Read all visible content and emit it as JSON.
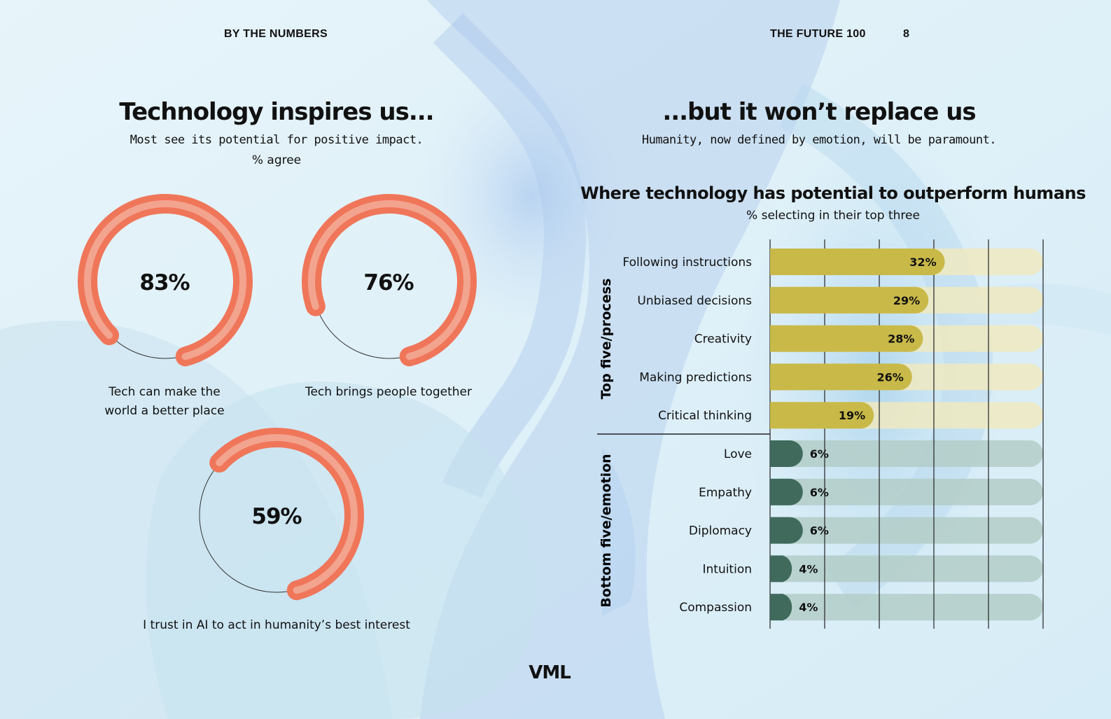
{
  "header": {
    "left": "BY THE NUMBERS",
    "right": "THE FUTURE 100",
    "page_number": "8"
  },
  "left": {
    "title": "Technology inspires us...",
    "subtitle": "Most see its potential for positive impact.",
    "unit": "% agree",
    "donuts": [
      {
        "value": 83,
        "label": "83%",
        "caption_lines": [
          "Tech can make the",
          "world a better place"
        ]
      },
      {
        "value": 76,
        "label": "76%",
        "caption_lines": [
          "Tech brings people together"
        ]
      },
      {
        "value": 59,
        "label": "59%",
        "caption_lines": [
          "I trust in AI to act in humanity’s best interest"
        ]
      }
    ]
  },
  "right": {
    "title": "...but it won’t replace us",
    "subtitle": "Humanity, now defined by emotion, will be paramount."
  },
  "chart_data": [
    {
      "type": "pie",
      "title": "Technology inspires us...",
      "subtitle": "Most see its potential for positive impact.",
      "unit": "% agree",
      "categories": [
        "Tech can make the world a better place",
        "Tech brings people together",
        "I trust in AI to act in humanity’s best interest"
      ],
      "values": [
        83,
        76,
        59
      ]
    },
    {
      "type": "bar",
      "orientation": "horizontal",
      "title": "Where technology has potential to outperform humans",
      "subtitle": "% selecting in their top three",
      "groups": [
        {
          "name": "Top five/process",
          "categories": [
            "Following instructions",
            "Unbiased decisions",
            "Creativity",
            "Making predictions",
            "Critical thinking"
          ],
          "values": [
            32,
            29,
            28,
            26,
            19
          ],
          "labels": [
            "32%",
            "29%",
            "28%",
            "26%",
            "19%"
          ]
        },
        {
          "name": "Bottom five/emotion",
          "categories": [
            "Love",
            "Empathy",
            "Diplomacy",
            "Intuition",
            "Compassion"
          ],
          "values": [
            6,
            6,
            6,
            4,
            4
          ],
          "labels": [
            "6%",
            "6%",
            "6%",
            "4%",
            "4%"
          ]
        }
      ],
      "xlim": [
        0,
        50
      ],
      "grid": true,
      "colors": {
        "top": "#c9b949",
        "bottom": "#3f6a5c",
        "track_top": "#eee9bf",
        "track_bottom": "#b3cdc8"
      }
    }
  ],
  "colors": {
    "ring": "#f0765a",
    "ring_inner": "#f3b4a2",
    "thin_ring": "#333333"
  },
  "footer": {
    "logo": "VML"
  }
}
